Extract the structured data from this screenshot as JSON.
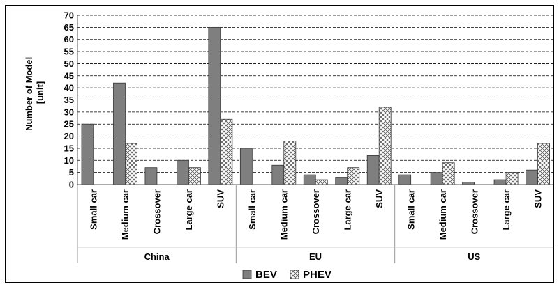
{
  "chart_data": {
    "type": "bar",
    "ylabel_lines": [
      "Number of Model",
      "[unit]"
    ],
    "ylim": [
      0,
      70
    ],
    "ytick_step": 5,
    "grid": true,
    "legend_position": "bottom-center",
    "groups": [
      {
        "name": "China",
        "categories": [
          "Small car",
          "Medium car",
          "Crossover",
          "Large car",
          "SUV"
        ]
      },
      {
        "name": "EU",
        "categories": [
          "Small car",
          "Medium car",
          "Crossover",
          "Large car",
          "SUV"
        ]
      },
      {
        "name": "US",
        "categories": [
          "Small car",
          "Medium car",
          "Crossover",
          "Large car",
          "SUV"
        ]
      }
    ],
    "series": [
      {
        "name": "BEV",
        "color": "#7f7f7f",
        "pattern": "solid",
        "values": [
          25,
          42,
          7,
          10,
          65,
          15,
          8,
          4,
          3,
          12,
          4,
          5,
          1,
          2,
          6
        ]
      },
      {
        "name": "PHEV",
        "color": "#ffffff",
        "pattern": "crosshatch",
        "values": [
          0,
          17,
          0,
          7,
          27,
          0,
          18,
          2,
          7,
          32,
          0,
          9,
          0,
          5,
          17
        ]
      }
    ]
  }
}
